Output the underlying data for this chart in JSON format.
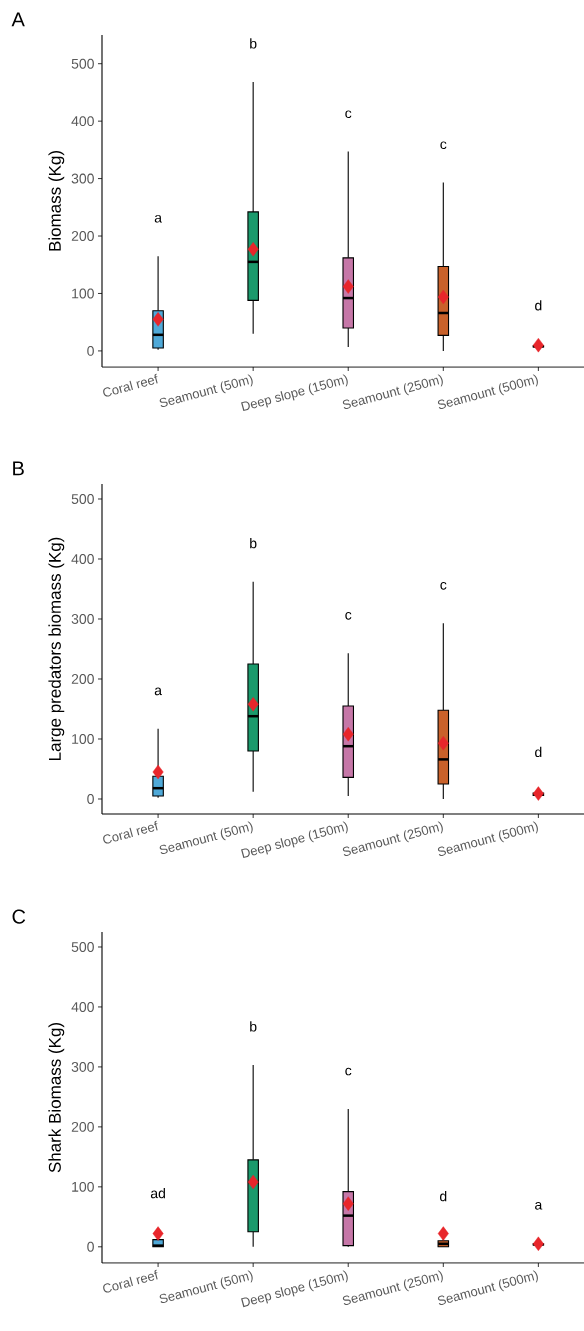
{
  "chart_data": [
    {
      "type": "box",
      "title": "A",
      "ylabel": "Biomass (Kg)",
      "categories": [
        "Coral reef",
        "Seamount (50m)",
        "Deep slope (150m)",
        "Seamount (250m)",
        "Seamount (500m)"
      ],
      "colors": [
        "#4fa9d8",
        "#1b9a6c",
        "#c677a8",
        "#c9612a",
        "#edd94a"
      ],
      "boxes": [
        {
          "low": 2,
          "q1": 5,
          "median": 28,
          "q3": 70,
          "high": 165,
          "mean": 55
        },
        {
          "low": 30,
          "q1": 88,
          "median": 155,
          "q3": 242,
          "high": 468,
          "mean": 177
        },
        {
          "low": 7,
          "q1": 40,
          "median": 92,
          "q3": 162,
          "high": 347,
          "mean": 112
        },
        {
          "low": 0,
          "q1": 27,
          "median": 66,
          "q3": 147,
          "high": 293,
          "mean": 94
        },
        {
          "low": 5,
          "q1": 7,
          "median": 8,
          "q3": 9,
          "high": 12,
          "mean": 10
        }
      ],
      "ylim": [
        -28,
        550
      ],
      "yticks": [
        0,
        100,
        200,
        300,
        400,
        500
      ],
      "annotations": [
        "a",
        "b",
        "c",
        "c",
        "d"
      ]
    },
    {
      "type": "box",
      "title": "B",
      "ylabel": "Large predators biomass (Kg)",
      "categories": [
        "Coral reef",
        "Seamount (50m)",
        "Deep slope (150m)",
        "Seamount (250m)",
        "Seamount (500m)"
      ],
      "colors": [
        "#4fa9d8",
        "#1b9a6c",
        "#c677a8",
        "#c9612a",
        "#edd94a"
      ],
      "boxes": [
        {
          "low": 2,
          "q1": 5,
          "median": 18,
          "q3": 38,
          "high": 117,
          "mean": 45
        },
        {
          "low": 12,
          "q1": 80,
          "median": 138,
          "q3": 225,
          "high": 362,
          "mean": 158
        },
        {
          "low": 5,
          "q1": 36,
          "median": 88,
          "q3": 155,
          "high": 243,
          "mean": 108
        },
        {
          "low": 0,
          "q1": 25,
          "median": 66,
          "q3": 148,
          "high": 293,
          "mean": 93
        },
        {
          "low": 4,
          "q1": 6,
          "median": 8,
          "q3": 10,
          "high": 14,
          "mean": 9
        }
      ],
      "ylim": [
        -25,
        525
      ],
      "yticks": [
        0,
        100,
        200,
        300,
        400,
        500
      ],
      "annotations": [
        "a",
        "b",
        "c",
        "c",
        "d"
      ]
    },
    {
      "type": "box",
      "title": "C",
      "ylabel": "Shark Biomass (Kg)",
      "categories": [
        "Coral reef",
        "Seamount (50m)",
        "Deep slope (150m)",
        "Seamount (250m)",
        "Seamount (500m)"
      ],
      "colors": [
        "#4fa9d8",
        "#1b9a6c",
        "#c677a8",
        "#c9612a",
        "#edd94a"
      ],
      "boxes": [
        {
          "low": 0,
          "q1": 0,
          "median": 2,
          "q3": 12,
          "high": 25,
          "mean": 22
        },
        {
          "low": 0,
          "q1": 25,
          "median": 108,
          "q3": 145,
          "high": 303,
          "mean": 108
        },
        {
          "low": 0,
          "q1": 2,
          "median": 52,
          "q3": 92,
          "high": 230,
          "mean": 72
        },
        {
          "low": 0,
          "q1": 0,
          "median": 5,
          "q3": 10,
          "high": 20,
          "mean": 22
        },
        {
          "low": 2,
          "q1": 3,
          "median": 4,
          "q3": 5,
          "high": 6,
          "mean": 5
        }
      ],
      "ylim": [
        -27,
        525
      ],
      "yticks": [
        0,
        100,
        200,
        300,
        400,
        500
      ],
      "annotations": [
        "ad",
        "b",
        "c",
        "d",
        "a"
      ]
    }
  ]
}
